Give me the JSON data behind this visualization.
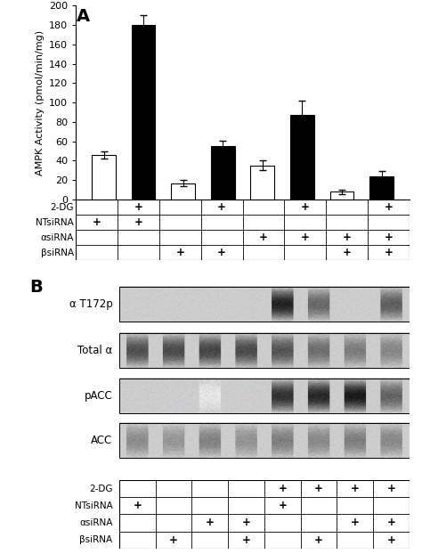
{
  "n_bars": 8,
  "panel_A": {
    "bar_values": [
      46,
      180,
      17,
      55,
      35,
      87,
      8,
      24
    ],
    "bar_errors": [
      4,
      10,
      3,
      6,
      5,
      15,
      2,
      5
    ],
    "bar_colors": [
      "white",
      "black",
      "white",
      "black",
      "white",
      "black",
      "white",
      "black"
    ],
    "bar_edgecolors": [
      "black",
      "black",
      "black",
      "black",
      "black",
      "black",
      "black",
      "black"
    ],
    "ylabel": "AMPK Activity (pmol/min/mg)",
    "ylim": [
      0,
      200
    ],
    "yticks": [
      0,
      20,
      40,
      60,
      80,
      100,
      120,
      140,
      160,
      180,
      200
    ],
    "table_rows": [
      "2-DG",
      "NTsiRNA",
      "αsiRNA",
      "βsiRNA"
    ],
    "table_data": [
      [
        "",
        "+",
        "",
        "+",
        "",
        "+",
        "",
        "+"
      ],
      [
        "+",
        "+",
        "",
        "",
        "",
        "",
        "",
        ""
      ],
      [
        "",
        "",
        "",
        "",
        "+",
        "+",
        "+",
        "+"
      ],
      [
        "",
        "",
        "+",
        "+",
        "",
        "",
        "+",
        "+"
      ]
    ]
  },
  "panel_B": {
    "blot_labels": [
      "α T172p",
      "Total α",
      "pACC",
      "ACC"
    ],
    "table_rows": [
      "2-DG",
      "NTsiRNA",
      "αsiRNA",
      "βsiRNA"
    ],
    "table_data": [
      [
        "",
        "",
        "",
        "",
        "+",
        "+",
        "+",
        "+"
      ],
      [
        "+",
        "",
        "",
        "",
        "+",
        "",
        "",
        ""
      ],
      [
        "",
        "",
        "+",
        "+",
        "",
        "",
        "+",
        "+"
      ],
      [
        "",
        "+",
        "",
        "+",
        "",
        "+",
        "",
        "+"
      ]
    ]
  },
  "figure_bg": "#ffffff",
  "text_color": "#000000",
  "table_fontsize": 7.5,
  "axis_fontsize": 8,
  "ylabel_fontsize": 8,
  "label_fontsize": 14,
  "bar_width": 0.6
}
